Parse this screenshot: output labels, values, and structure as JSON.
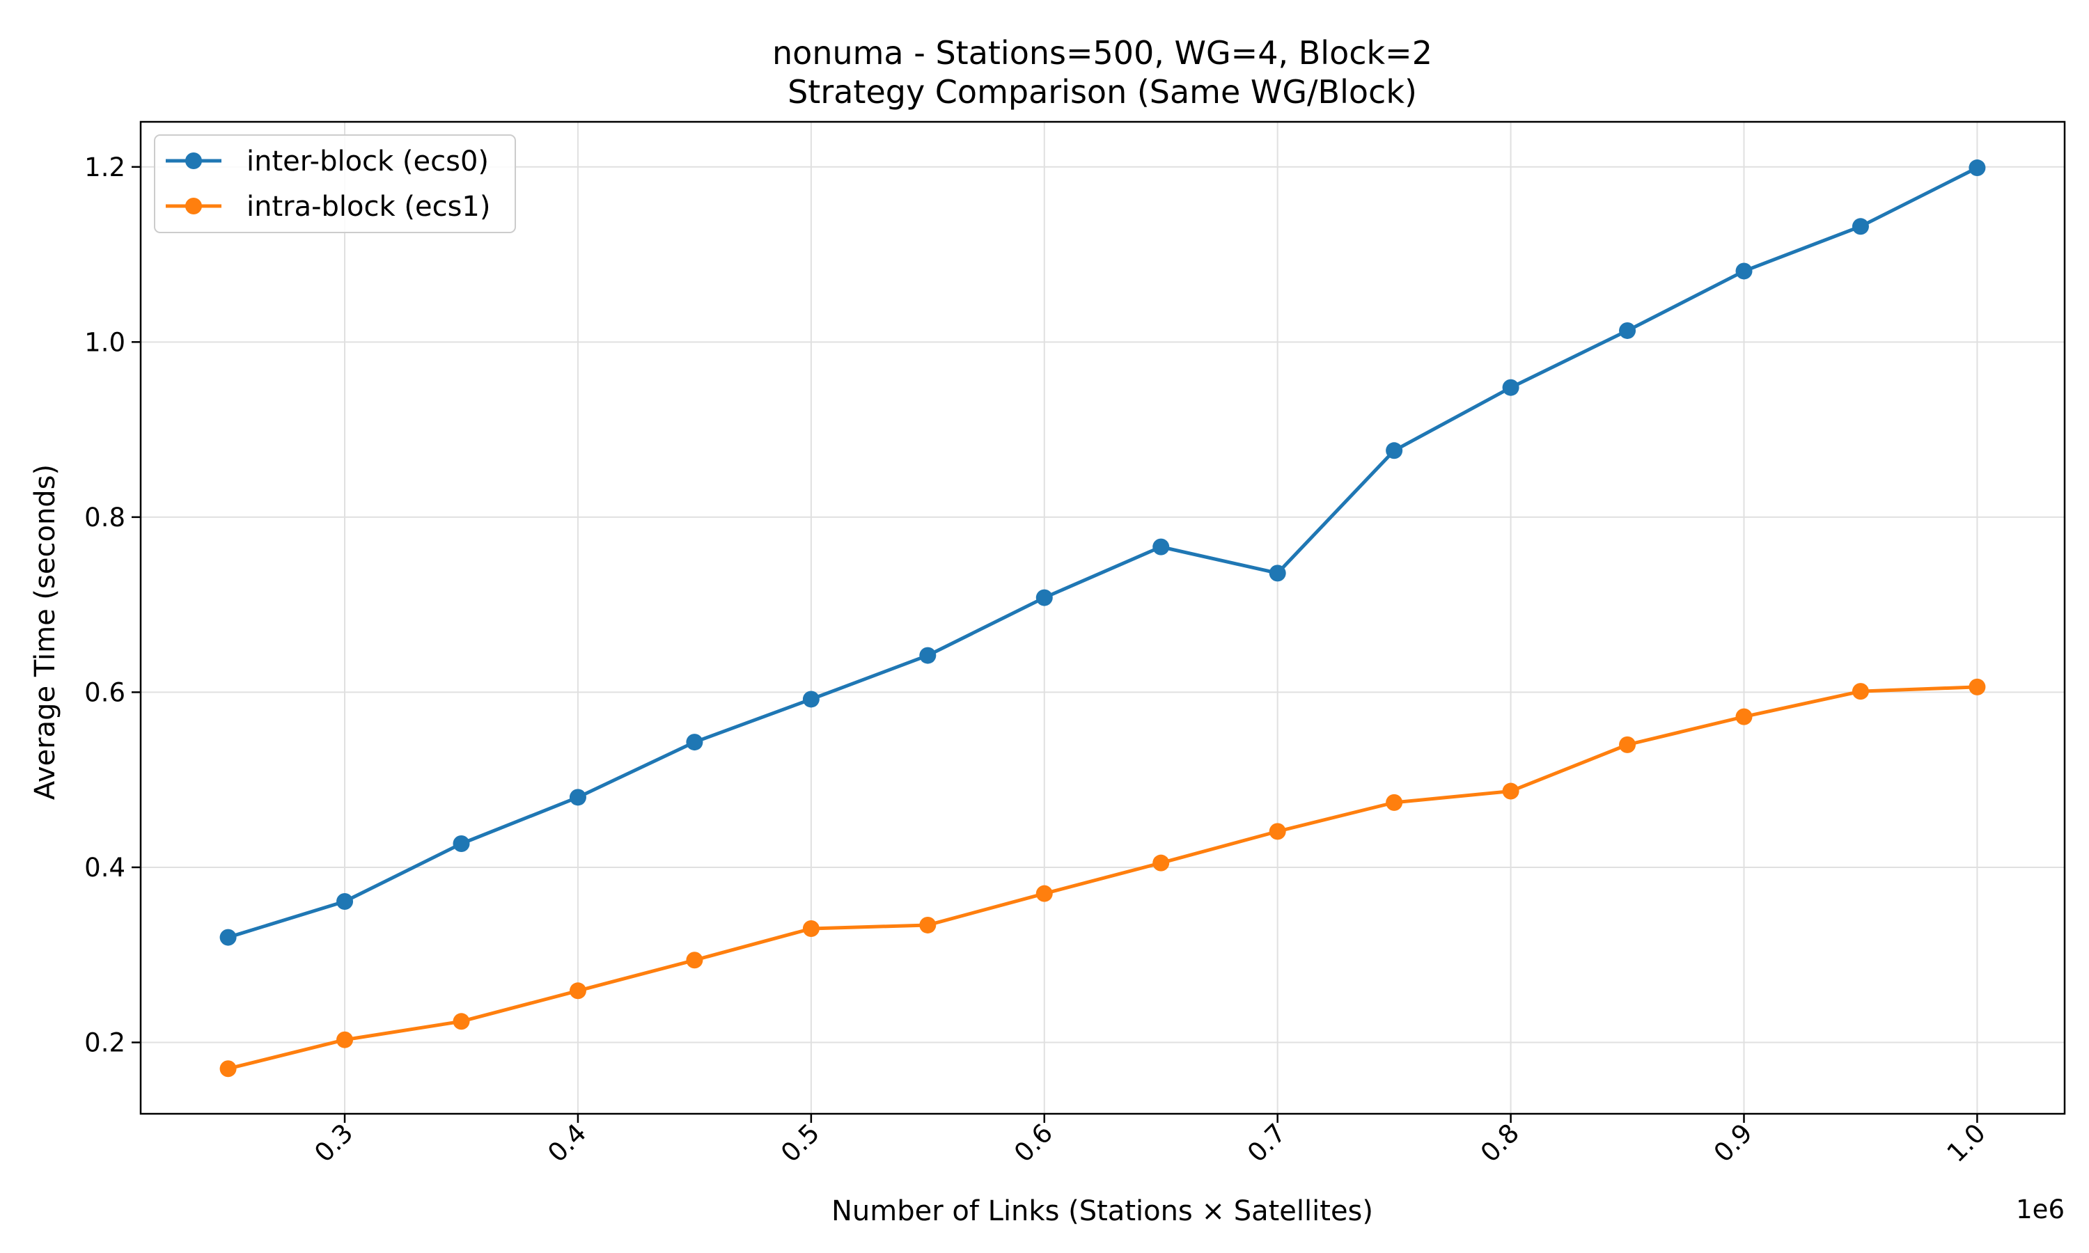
{
  "chart_data": {
    "type": "line",
    "title": "nonuma - Stations=500, WG=4, Block=2",
    "subtitle": "Strategy Comparison (Same WG/Block)",
    "xlabel": "Number of Links (Stations × Satellites)",
    "ylabel": "Average Time (seconds)",
    "x_offset_label": "1e6",
    "x_scale_factor": 1000000,
    "xlim": [
      0.2125,
      1.0375
    ],
    "ylim": [
      0.1185,
      1.2515
    ],
    "x_ticks": [
      0.3,
      0.4,
      0.5,
      0.6,
      0.7,
      0.8,
      0.9,
      1.0
    ],
    "x_tick_labels": [
      "0.3",
      "0.4",
      "0.5",
      "0.6",
      "0.7",
      "0.8",
      "0.9",
      "1.0"
    ],
    "y_ticks": [
      0.2,
      0.4,
      0.6,
      0.8,
      1.0,
      1.2
    ],
    "y_tick_labels": [
      "0.2",
      "0.4",
      "0.6",
      "0.8",
      "1.0",
      "1.2"
    ],
    "grid": true,
    "legend_position": "top-left",
    "x": [
      250000,
      300000,
      350000,
      400000,
      450000,
      500000,
      550000,
      600000,
      650000,
      700000,
      750000,
      800000,
      850000,
      900000,
      950000,
      1000000
    ],
    "series": [
      {
        "name": "inter-block (ecs0)",
        "color": "#1f77b4",
        "values": [
          0.32,
          0.361,
          0.427,
          0.48,
          0.543,
          0.592,
          0.642,
          0.708,
          0.766,
          0.736,
          0.876,
          0.948,
          1.013,
          1.081,
          1.132,
          1.199
        ]
      },
      {
        "name": "intra-block (ecs1)",
        "color": "#ff7f0e",
        "values": [
          0.17,
          0.203,
          0.224,
          0.259,
          0.294,
          0.33,
          0.334,
          0.37,
          0.405,
          0.441,
          0.474,
          0.487,
          0.54,
          0.572,
          0.601,
          0.606
        ]
      }
    ]
  }
}
